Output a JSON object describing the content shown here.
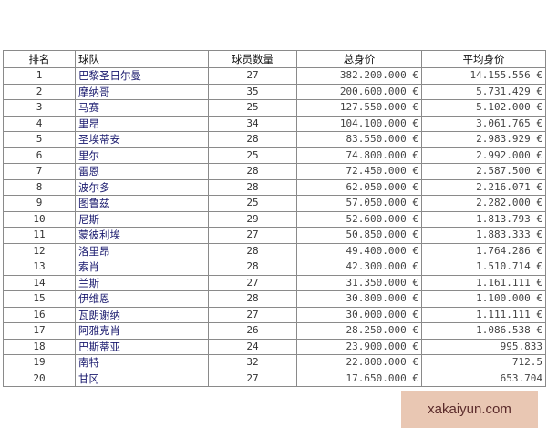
{
  "headers": [
    "排名",
    "球队",
    "球员数量",
    "总身价",
    "平均身价"
  ],
  "rows": [
    [
      "1",
      "巴黎圣日尔曼",
      "27",
      "382.200.000 €",
      "14.155.556 €"
    ],
    [
      "2",
      "摩纳哥",
      "35",
      "200.600.000 €",
      "5.731.429 €"
    ],
    [
      "3",
      "马赛",
      "25",
      "127.550.000 €",
      "5.102.000 €"
    ],
    [
      "4",
      "里昂",
      "34",
      "104.100.000 €",
      "3.061.765 €"
    ],
    [
      "5",
      "圣埃蒂安",
      "28",
      "83.550.000 €",
      "2.983.929 €"
    ],
    [
      "6",
      "里尔",
      "25",
      "74.800.000 €",
      "2.992.000 €"
    ],
    [
      "7",
      "雷恩",
      "28",
      "72.450.000 €",
      "2.587.500 €"
    ],
    [
      "8",
      "波尔多",
      "28",
      "62.050.000 €",
      "2.216.071 €"
    ],
    [
      "9",
      "图鲁兹",
      "25",
      "57.050.000 €",
      "2.282.000 €"
    ],
    [
      "10",
      "尼斯",
      "29",
      "52.600.000 €",
      "1.813.793 €"
    ],
    [
      "11",
      "蒙彼利埃",
      "27",
      "50.850.000 €",
      "1.883.333 €"
    ],
    [
      "12",
      "洛里昂",
      "28",
      "49.400.000 €",
      "1.764.286 €"
    ],
    [
      "13",
      "索肖",
      "28",
      "42.300.000 €",
      "1.510.714 €"
    ],
    [
      "14",
      "兰斯",
      "27",
      "31.350.000 €",
      "1.161.111 €"
    ],
    [
      "15",
      "伊维恩",
      "28",
      "30.800.000 €",
      "1.100.000 €"
    ],
    [
      "16",
      "瓦朗谢纳",
      "27",
      "30.000.000 €",
      "1.111.111 €"
    ],
    [
      "17",
      "阿雅克肖",
      "26",
      "28.250.000 €",
      "1.086.538 €"
    ],
    [
      "18",
      "巴斯蒂亚",
      "24",
      "23.900.000 €",
      "995.833"
    ],
    [
      "19",
      "南特",
      "32",
      "22.800.000 €",
      "712.5"
    ],
    [
      "20",
      "甘冈",
      "27",
      "17.650.000 €",
      "653.704"
    ]
  ],
  "watermark": "xakaiyun.com"
}
